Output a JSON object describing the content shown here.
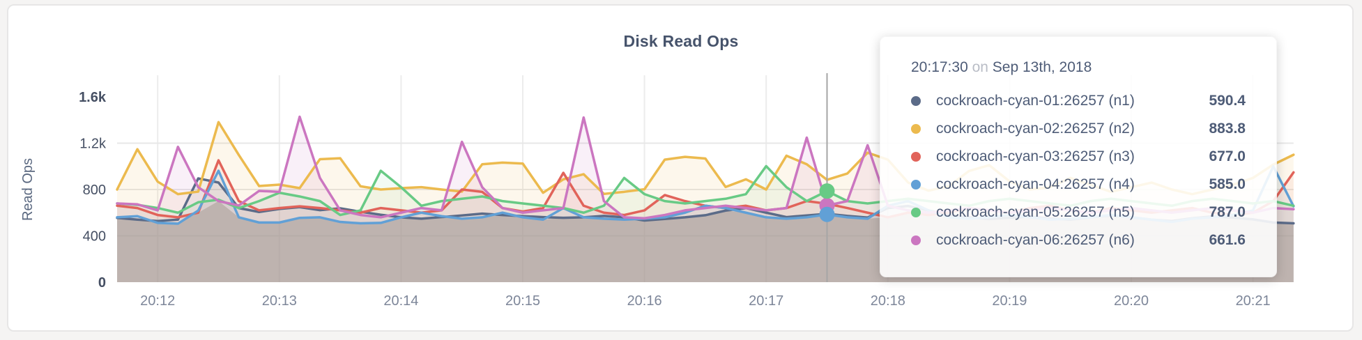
{
  "page": {
    "title": "Disk Read Ops"
  },
  "tooltip": {
    "time": "20:17:30",
    "conjunction": "on",
    "date": "Sep 13th, 2018",
    "rows": [
      {
        "label": "cockroach-cyan-01:26257 (n1)",
        "value": "590.4",
        "color": "#5b6b88"
      },
      {
        "label": "cockroach-cyan-02:26257 (n2)",
        "value": "883.8",
        "color": "#ecba4e"
      },
      {
        "label": "cockroach-cyan-03:26257 (n3)",
        "value": "677.0",
        "color": "#e1635a"
      },
      {
        "label": "cockroach-cyan-04:26257 (n4)",
        "value": "585.0",
        "color": "#61a0d6"
      },
      {
        "label": "cockroach-cyan-05:26257 (n5)",
        "value": "787.0",
        "color": "#68ca85"
      },
      {
        "label": "cockroach-cyan-06:26257 (n6)",
        "value": "661.6",
        "color": "#cb76c0"
      }
    ]
  },
  "hover": {
    "time": "20:17:30",
    "point_index": 35,
    "dots": [
      {
        "series_index": 5,
        "value": 661.6
      },
      {
        "series_index": 4,
        "value": 787.0
      },
      {
        "series_index": 3,
        "value": 585.0
      }
    ]
  },
  "chart_data": {
    "type": "line",
    "title": "Disk Read Ops",
    "xlabel": "",
    "ylabel": "Read Ops",
    "ylim": [
      0,
      1600
    ],
    "grid": true,
    "legend_position": "none",
    "x_start_time": "20:11:40",
    "x_interval_seconds": 10,
    "x_ticks": [
      {
        "index": 2,
        "label": "20:12"
      },
      {
        "index": 8,
        "label": "20:13"
      },
      {
        "index": 14,
        "label": "20:14"
      },
      {
        "index": 20,
        "label": "20:15"
      },
      {
        "index": 26,
        "label": "20:16"
      },
      {
        "index": 32,
        "label": "20:17"
      },
      {
        "index": 38,
        "label": "20:18"
      },
      {
        "index": 44,
        "label": "20:19"
      },
      {
        "index": 50,
        "label": "20:20"
      },
      {
        "index": 56,
        "label": "20:21"
      }
    ],
    "y_ticks": [
      {
        "value": 0,
        "label": "0"
      },
      {
        "value": 400,
        "label": "400"
      },
      {
        "value": 800,
        "label": "800"
      },
      {
        "value": 1200,
        "label": "1.2k"
      },
      {
        "value": 1600,
        "label": "1.6k"
      }
    ],
    "series": [
      {
        "name": "cockroach-cyan-01:26257 (n1)",
        "color": "#5b6b88",
        "values": [
          555,
          540,
          528,
          540,
          896,
          860,
          640,
          606,
          632,
          648,
          622,
          638,
          608,
          582,
          560,
          548,
          562,
          576,
          592,
          580,
          570,
          562,
          556,
          560,
          572,
          560,
          532,
          546,
          560,
          578,
          618,
          640,
          600,
          562,
          576,
          590.4,
          572,
          558,
          640,
          658,
          620,
          580,
          560,
          545,
          556,
          566,
          550,
          540,
          560,
          575,
          560,
          540,
          528,
          552,
          568,
          558,
          542,
          515,
          508
        ]
      },
      {
        "name": "cockroach-cyan-02:26257 (n2)",
        "color": "#ecba4e",
        "values": [
          800,
          1148,
          868,
          760,
          782,
          1382,
          1098,
          830,
          842,
          812,
          1062,
          1070,
          828,
          800,
          812,
          820,
          800,
          782,
          1018,
          1032,
          1024,
          772,
          888,
          932,
          762,
          780,
          802,
          1058,
          1082,
          1068,
          822,
          888,
          800,
          1092,
          1018,
          883.8,
          938,
          1118,
          1058,
          860,
          790,
          828,
          960,
          1010,
          870,
          800,
          820,
          900,
          840,
          780,
          820,
          860,
          800,
          760,
          800,
          840,
          900,
          1015,
          1100
        ]
      },
      {
        "name": "cockroach-cyan-03:26257 (n3)",
        "color": "#e1635a",
        "values": [
          660,
          640,
          580,
          560,
          600,
          1052,
          700,
          620,
          640,
          655,
          640,
          620,
          600,
          640,
          620,
          600,
          620,
          800,
          780,
          640,
          610,
          640,
          944,
          660,
          600,
          580,
          620,
          752,
          700,
          660,
          640,
          660,
          620,
          640,
          700,
          677,
          640,
          600,
          560,
          600,
          580,
          600,
          640,
          620,
          600,
          640,
          660,
          620,
          600,
          640,
          620,
          600,
          620,
          640,
          600,
          580,
          600,
          700,
          948
        ]
      },
      {
        "name": "cockroach-cyan-04:26257 (n4)",
        "color": "#61a0d6",
        "values": [
          560,
          570,
          512,
          505,
          618,
          962,
          560,
          515,
          515,
          555,
          560,
          520,
          508,
          512,
          560,
          600,
          570,
          548,
          560,
          600,
          560,
          540,
          640,
          560,
          548,
          540,
          548,
          560,
          600,
          660,
          640,
          600,
          560,
          548,
          560,
          585,
          560,
          548,
          660,
          700,
          620,
          560,
          548,
          560,
          580,
          560,
          540,
          548,
          560,
          580,
          560,
          540,
          520,
          548,
          560,
          580,
          620,
          1000,
          655
        ]
      },
      {
        "name": "cockroach-cyan-05:26257 (n5)",
        "color": "#68ca85",
        "values": [
          680,
          668,
          640,
          600,
          690,
          712,
          640,
          700,
          772,
          740,
          700,
          580,
          620,
          962,
          820,
          660,
          700,
          720,
          740,
          700,
          680,
          660,
          640,
          600,
          660,
          900,
          760,
          700,
          680,
          700,
          720,
          760,
          1002,
          820,
          700,
          787,
          700,
          680,
          700,
          720,
          700,
          680,
          660,
          700,
          720,
          700,
          680,
          660,
          700,
          720,
          700,
          680,
          660,
          700,
          720,
          700,
          680,
          700,
          660
        ]
      },
      {
        "name": "cockroach-cyan-06:26257 (n6)",
        "color": "#cb76c0",
        "values": [
          680,
          672,
          620,
          1168,
          820,
          700,
          662,
          788,
          780,
          1428,
          900,
          620,
          580,
          560,
          600,
          640,
          620,
          1212,
          820,
          640,
          600,
          620,
          640,
          1422,
          700,
          560,
          552,
          580,
          620,
          640,
          660,
          640,
          620,
          640,
          1248,
          661.6,
          700,
          1182,
          660,
          620,
          600,
          620,
          640,
          620,
          600,
          620,
          640,
          620,
          600,
          620,
          640,
          620,
          600,
          620,
          640,
          620,
          600,
          640,
          630
        ]
      }
    ]
  }
}
